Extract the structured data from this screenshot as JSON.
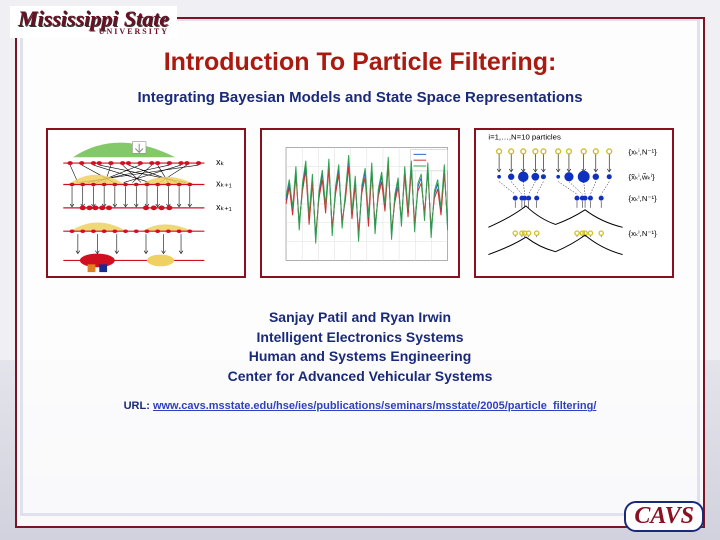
{
  "colors": {
    "outer_border": "#2a3a8a",
    "inner_border": "#7a1528",
    "title": "#aa1a10",
    "subtitle": "#1a2a7a",
    "fig_border": "#8a1020",
    "authors": "#1a2a7a",
    "url_label": "#1a2a7a",
    "url_link": "#3040c0",
    "logo_maroon": "#6a1024",
    "cavs_border": "#1a2a7a",
    "cavs_text": "#8a1024"
  },
  "logo_ms": {
    "main": "Mississippi State",
    "sub": "UNIVERSITY"
  },
  "logo_cavs": "CAVS",
  "title": "Introduction To Particle Filtering:",
  "subtitle": "Integrating Bayesian Models and State Space Representations",
  "authors": [
    "Sanjay Patil and Ryan Irwin",
    "Intelligent Electronics Systems",
    "Human and Systems Engineering",
    "Center for Advanced Vehicular Systems"
  ],
  "url_label": "URL: ",
  "url": "www.cavs.msstate.edu/hse/ies/publications/seminars/msstate/2005/particle_filtering/",
  "fig1": {
    "type": "infographic",
    "labels": [
      "xₖ",
      "xₖ₊₁",
      "xₖ₊₁"
    ],
    "label_fontsize": 9,
    "dist_fill_top": "#6fbf4f",
    "dist_fill_mid": "#f0d060",
    "dist_fill_bot": "#f0d060",
    "particle_color": "#d01020",
    "arrow_color": "#000000",
    "big_ellipse_colors": [
      "#d01020",
      "#f0d060"
    ],
    "small_block_colors": [
      "#e08020",
      "#1a2a90"
    ],
    "line_color": "#d01020"
  },
  "fig2": {
    "type": "line",
    "xlim": [
      0,
      100
    ],
    "ylim": [
      -3,
      3
    ],
    "grid_color": "#dddddd",
    "axis_color": "#666666",
    "border_color": "#999999",
    "series": [
      {
        "color": "#2060d0",
        "width": 1
      },
      {
        "color": "#d03030",
        "width": 1
      },
      {
        "color": "#30a050",
        "width": 1
      }
    ],
    "n_points": 50,
    "data": {
      "s1": [
        0.2,
        1.1,
        -0.4,
        1.8,
        -1.2,
        0.9,
        2.1,
        -0.8,
        1.4,
        -1.9,
        0.5,
        1.6,
        -0.3,
        2.2,
        -1.5,
        0.7,
        1.9,
        -1.1,
        0.4,
        2.4,
        -0.6,
        1.3,
        -1.8,
        0.8,
        1.7,
        -0.9,
        2.0,
        -1.4,
        0.6,
        1.5,
        -0.2,
        2.3,
        -1.7,
        0.3,
        1.2,
        -1.0,
        1.8,
        -0.5,
        2.1,
        -1.3,
        0.9,
        1.4,
        -0.7,
        2.0,
        -1.6,
        0.5,
        1.1,
        -0.4,
        1.9,
        -1.2
      ],
      "s2": [
        0.0,
        0.9,
        -0.6,
        1.5,
        -1.0,
        0.7,
        1.8,
        -1.1,
        1.1,
        -1.6,
        0.3,
        1.3,
        -0.5,
        1.9,
        -1.3,
        0.5,
        1.6,
        -0.9,
        0.2,
        2.0,
        -0.8,
        1.0,
        -1.5,
        0.6,
        1.4,
        -1.2,
        1.7,
        -1.1,
        0.4,
        1.2,
        -0.4,
        2.0,
        -1.4,
        0.1,
        0.9,
        -0.8,
        1.5,
        -0.7,
        1.8,
        -1.0,
        0.7,
        1.1,
        -0.5,
        1.7,
        -1.3,
        0.3,
        0.8,
        -0.6,
        1.6,
        -0.9
      ],
      "s3": [
        0.4,
        1.3,
        -0.2,
        2.0,
        -1.4,
        1.1,
        2.3,
        -0.6,
        1.6,
        -2.1,
        0.7,
        1.8,
        -0.1,
        2.4,
        -1.7,
        0.9,
        2.1,
        -1.3,
        0.6,
        2.6,
        -0.4,
        1.5,
        -2.0,
        1.0,
        1.9,
        -0.7,
        2.2,
        -1.6,
        0.8,
        1.7,
        0.0,
        2.5,
        -1.9,
        0.5,
        1.4,
        -1.2,
        2.0,
        -0.3,
        2.3,
        -1.5,
        1.1,
        1.6,
        -0.9,
        2.2,
        -1.8,
        0.7,
        1.3,
        -0.2,
        2.1,
        -1.4
      ]
    }
  },
  "fig3": {
    "type": "infographic",
    "header_text": "i=1,…,N=10 particles",
    "header_fontsize": 8,
    "annotations": [
      "{xₖⁱ,N⁻¹}",
      "{x̃ₖⁱ,w̃ₖⁱ}",
      "{xₖⁱ,N⁻¹}",
      "{xₖⁱ,N⁻¹}"
    ],
    "anno_fontsize": 8,
    "small_dot_color": "#d0c020",
    "big_dot_color": "#1030c0",
    "dist_stroke": "#000000",
    "dist_fill": "none",
    "arrow_color": "#000000",
    "n_particles": 10,
    "particle_x": [
      0.08,
      0.17,
      0.26,
      0.35,
      0.41,
      0.52,
      0.6,
      0.71,
      0.8,
      0.9
    ],
    "weights": [
      1,
      3,
      6,
      4,
      2,
      1,
      5,
      7,
      3,
      2
    ],
    "resampled_x": [
      0.2,
      0.25,
      0.27,
      0.3,
      0.36,
      0.66,
      0.7,
      0.72,
      0.76,
      0.84
    ]
  }
}
